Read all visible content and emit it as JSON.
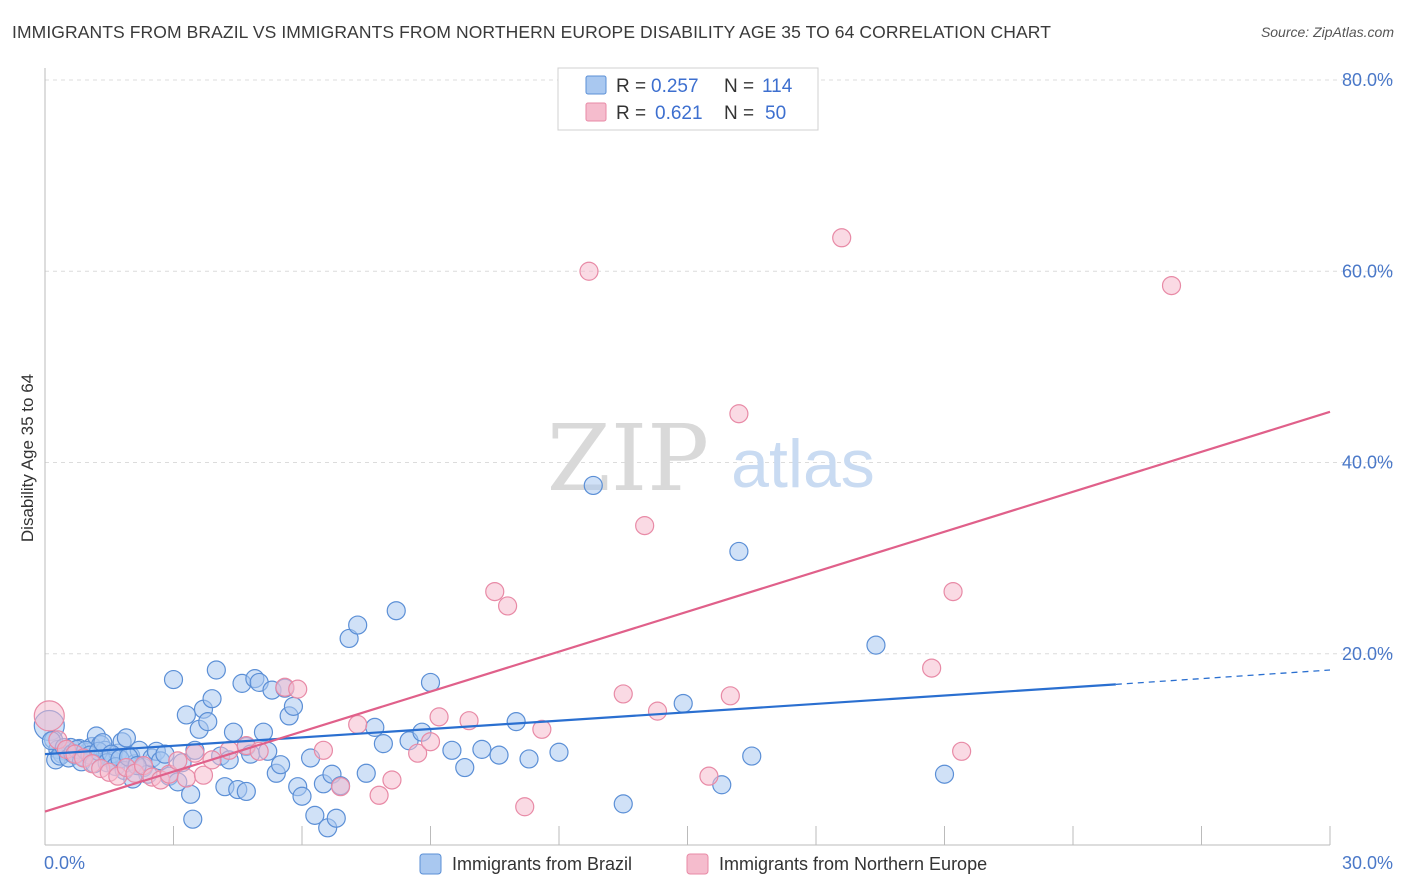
{
  "title": "IMMIGRANTS FROM BRAZIL VS IMMIGRANTS FROM NORTHERN EUROPE DISABILITY AGE 35 TO 64 CORRELATION CHART",
  "source": "Source: ZipAtlas.com",
  "watermark": {
    "zip": "ZIP",
    "atlas": "atlas"
  },
  "colors": {
    "blue_fill": "#a9c8f0",
    "blue_stroke": "#5b8fd6",
    "blue_line": "#2a6fd0",
    "pink_fill": "#f5bccd",
    "pink_stroke": "#e88aa6",
    "pink_line": "#e0608a",
    "tick_text": "#4a78c8",
    "grid": "#dcdcdc"
  },
  "legend": {
    "rows": [
      {
        "r_label": "R =",
        "r_value": "0.257",
        "n_label": "N =",
        "n_value": "114"
      },
      {
        "r_label": "R =",
        "r_value": "0.621",
        "n_label": "N =",
        "n_value": "50"
      }
    ]
  },
  "chart_data": {
    "type": "scatter",
    "xlabel": "",
    "ylabel": "Disability Age 35 to 64",
    "xlim": [
      0,
      30
    ],
    "ylim": [
      0,
      80
    ],
    "x_tick_labels": [
      "0.0%",
      "30.0%"
    ],
    "y_tick_labels": [
      "20.0%",
      "40.0%",
      "60.0%",
      "80.0%"
    ],
    "y_ticks": [
      20,
      40,
      60,
      80
    ],
    "grid": true,
    "series": [
      {
        "name": "Immigrants from Brazil",
        "color": "#5b8fd6",
        "R": 0.257,
        "N": 114,
        "trend": {
          "x0": 0,
          "y0": 9.5,
          "x1": 25,
          "y1": 16.8,
          "dashed_to_x": 30,
          "dashed_to_y": 18.3
        },
        "points": [
          [
            0.1,
            12.5
          ],
          [
            0.2,
            11
          ],
          [
            0.3,
            10
          ],
          [
            0.4,
            9.5
          ],
          [
            0.5,
            9.8
          ],
          [
            0.6,
            10.2
          ],
          [
            0.7,
            9.4
          ],
          [
            0.8,
            10.1
          ],
          [
            0.9,
            9.2
          ],
          [
            1.0,
            9.7
          ],
          [
            1.1,
            10.3
          ],
          [
            1.2,
            11.4
          ],
          [
            1.3,
            10.5
          ],
          [
            1.4,
            9.9
          ],
          [
            1.5,
            9.1
          ],
          [
            1.6,
            8.8
          ],
          [
            1.7,
            9.6
          ],
          [
            1.8,
            10.8
          ],
          [
            1.9,
            11.2
          ],
          [
            2.0,
            9.3
          ],
          [
            2.1,
            8.5
          ],
          [
            2.2,
            9.9
          ],
          [
            2.3,
            8.1
          ],
          [
            2.4,
            7.4
          ],
          [
            2.5,
            9.1
          ],
          [
            2.6,
            9.8
          ],
          [
            2.7,
            8.8
          ],
          [
            2.8,
            9.5
          ],
          [
            2.9,
            7.2
          ],
          [
            3.0,
            17.3
          ],
          [
            3.1,
            6.6
          ],
          [
            3.2,
            8.6
          ],
          [
            3.3,
            13.6
          ],
          [
            3.4,
            5.3
          ],
          [
            3.5,
            9.9
          ],
          [
            3.6,
            12.1
          ],
          [
            3.7,
            14.2
          ],
          [
            3.8,
            12.9
          ],
          [
            3.9,
            15.3
          ],
          [
            4.0,
            18.3
          ],
          [
            4.1,
            9.3
          ],
          [
            4.2,
            6.1
          ],
          [
            4.3,
            8.9
          ],
          [
            4.4,
            11.8
          ],
          [
            4.5,
            5.8
          ],
          [
            4.6,
            16.9
          ],
          [
            4.7,
            10.3
          ],
          [
            4.8,
            9.5
          ],
          [
            4.9,
            17.4
          ],
          [
            5.0,
            17.0
          ],
          [
            5.1,
            11.8
          ],
          [
            5.2,
            9.8
          ],
          [
            5.3,
            16.2
          ],
          [
            5.4,
            7.5
          ],
          [
            5.5,
            8.4
          ],
          [
            5.6,
            16.4
          ],
          [
            5.7,
            13.5
          ],
          [
            5.8,
            14.5
          ],
          [
            5.9,
            6.1
          ],
          [
            6.0,
            5.1
          ],
          [
            6.2,
            9.1
          ],
          [
            6.3,
            3.1
          ],
          [
            6.5,
            6.4
          ],
          [
            6.7,
            7.4
          ],
          [
            6.9,
            6.2
          ],
          [
            7.1,
            21.6
          ],
          [
            7.3,
            23.0
          ],
          [
            7.5,
            7.5
          ],
          [
            7.7,
            12.3
          ],
          [
            7.9,
            10.6
          ],
          [
            8.2,
            24.5
          ],
          [
            8.5,
            10.9
          ],
          [
            8.8,
            11.8
          ],
          [
            9.0,
            17.0
          ],
          [
            9.5,
            9.9
          ],
          [
            9.8,
            8.1
          ],
          [
            10.2,
            10.0
          ],
          [
            10.6,
            9.4
          ],
          [
            11.0,
            12.9
          ],
          [
            11.3,
            9.0
          ],
          [
            12.0,
            9.7
          ],
          [
            12.8,
            37.6
          ],
          [
            13.5,
            4.3
          ],
          [
            14.9,
            14.8
          ],
          [
            15.8,
            6.3
          ],
          [
            16.2,
            30.7
          ],
          [
            16.5,
            9.3
          ],
          [
            19.4,
            20.9
          ],
          [
            21.0,
            7.4
          ],
          [
            0.15,
            10.9
          ],
          [
            0.25,
            8.9
          ],
          [
            0.35,
            9.3
          ],
          [
            0.45,
            10.2
          ],
          [
            0.55,
            9.1
          ],
          [
            0.65,
            9.6
          ],
          [
            0.75,
            10.0
          ],
          [
            0.85,
            8.7
          ],
          [
            0.95,
            9.9
          ],
          [
            1.05,
            9.4
          ],
          [
            1.15,
            8.5
          ],
          [
            1.25,
            9.8
          ],
          [
            1.35,
            10.7
          ],
          [
            1.45,
            8.6
          ],
          [
            1.55,
            9.5
          ],
          [
            1.65,
            8.2
          ],
          [
            1.75,
            9.0
          ],
          [
            1.85,
            7.8
          ],
          [
            1.95,
            9.2
          ],
          [
            2.05,
            6.9
          ],
          [
            2.15,
            8.3
          ],
          [
            6.6,
            1.8
          ],
          [
            6.8,
            2.8
          ],
          [
            3.45,
            2.7
          ],
          [
            4.7,
            5.6
          ]
        ]
      },
      {
        "name": "Immigrants from Northern Europe",
        "color": "#e88aa6",
        "R": 0.621,
        "N": 50,
        "trend": {
          "x0": 0,
          "y0": 3.5,
          "x1": 30,
          "y1": 45.3
        },
        "points": [
          [
            0.1,
            13.5
          ],
          [
            0.3,
            11
          ],
          [
            0.5,
            10
          ],
          [
            0.7,
            9.5
          ],
          [
            0.9,
            9.1
          ],
          [
            1.1,
            8.5
          ],
          [
            1.3,
            8.0
          ],
          [
            1.5,
            7.6
          ],
          [
            1.7,
            7.2
          ],
          [
            1.9,
            8.1
          ],
          [
            2.1,
            7.5
          ],
          [
            2.3,
            8.3
          ],
          [
            2.5,
            7.1
          ],
          [
            2.7,
            6.8
          ],
          [
            2.9,
            7.4
          ],
          [
            3.1,
            8.8
          ],
          [
            3.3,
            7.0
          ],
          [
            3.5,
            9.6
          ],
          [
            3.7,
            7.3
          ],
          [
            3.9,
            8.9
          ],
          [
            4.3,
            9.9
          ],
          [
            4.7,
            10.4
          ],
          [
            5.0,
            9.8
          ],
          [
            5.6,
            16.5
          ],
          [
            5.9,
            16.3
          ],
          [
            6.5,
            9.9
          ],
          [
            6.9,
            6.1
          ],
          [
            7.3,
            12.6
          ],
          [
            7.8,
            5.2
          ],
          [
            8.1,
            6.8
          ],
          [
            8.7,
            9.6
          ],
          [
            9.2,
            13.4
          ],
          [
            9.9,
            13.0
          ],
          [
            10.5,
            26.5
          ],
          [
            10.8,
            25.0
          ],
          [
            11.2,
            4.0
          ],
          [
            11.6,
            12.1
          ],
          [
            12.7,
            60.0
          ],
          [
            13.5,
            15.8
          ],
          [
            14.0,
            33.4
          ],
          [
            14.3,
            14.0
          ],
          [
            15.5,
            7.2
          ],
          [
            16.0,
            15.6
          ],
          [
            16.2,
            45.1
          ],
          [
            18.6,
            63.5
          ],
          [
            20.7,
            18.5
          ],
          [
            21.2,
            26.5
          ],
          [
            21.4,
            9.8
          ],
          [
            26.3,
            58.5
          ],
          [
            9.0,
            10.8
          ]
        ]
      }
    ]
  },
  "bottom_legend": [
    "Immigrants from Brazil",
    "Immigrants from Northern Europe"
  ]
}
